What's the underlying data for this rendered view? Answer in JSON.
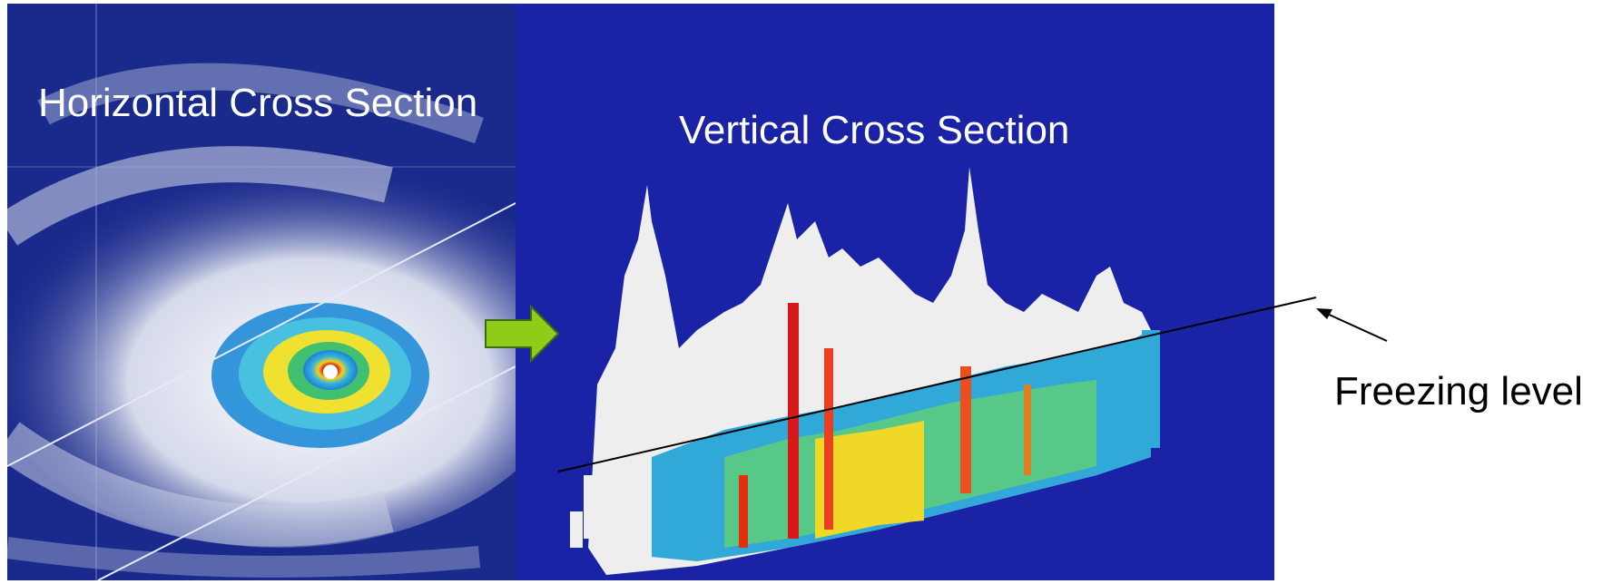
{
  "labels": {
    "horizontal": "Horizontal Cross Section",
    "vertical": "Vertical Cross Section",
    "freezing": "Freezing level"
  },
  "colors": {
    "left_background": "#1a2a8c",
    "right_background": "#1a22a6",
    "arrow": "#8fcc1a",
    "cloud": "#e8eaf2"
  }
}
